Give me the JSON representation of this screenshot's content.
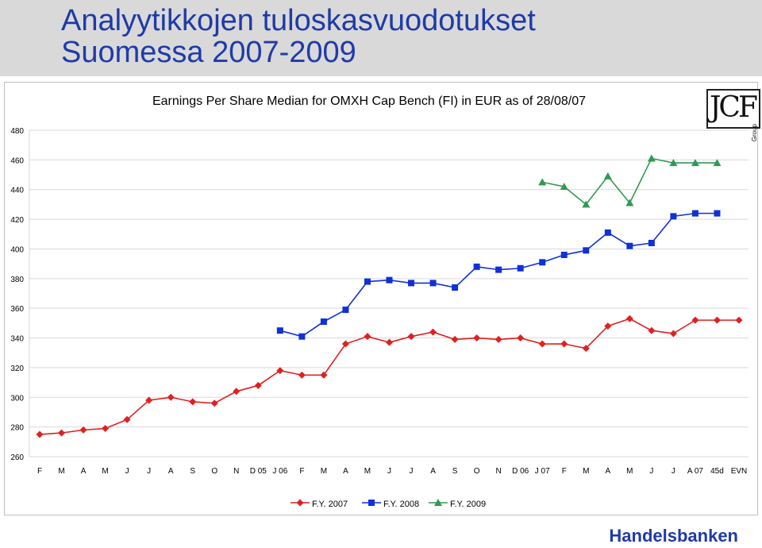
{
  "page": {
    "title_line1": "Analyytikkojen tuloskasvuodotukset",
    "title_line2": "Suomessa 2007-2009",
    "brand": "Handelsbanken",
    "logo_text": "JCF",
    "logo_sub": "Group"
  },
  "colors": {
    "title": "#1f3aa8",
    "fy2007": "#e02020",
    "fy2008": "#1030d8",
    "fy2009": "#2e9a52",
    "grid": "#d9d9d9"
  },
  "chart_data": {
    "type": "line",
    "title": "Earnings Per Share Median for OMXH Cap Bench (FI) in EUR as of 28/08/07",
    "ylim": [
      260,
      480
    ],
    "yticks": [
      260,
      280,
      300,
      320,
      340,
      360,
      380,
      400,
      420,
      440,
      460,
      480
    ],
    "grid": true,
    "legend_position": "bottom-center",
    "categories": [
      "F",
      "M",
      "A",
      "M",
      "J",
      "J",
      "A",
      "S",
      "O",
      "N",
      "D 05",
      "J 06",
      "F",
      "M",
      "A",
      "M",
      "J",
      "J",
      "A",
      "S",
      "O",
      "N",
      "D 06",
      "J 07",
      "F",
      "M",
      "A",
      "M",
      "J",
      "J",
      "A 07",
      "45d",
      "EVN"
    ],
    "series": [
      {
        "name": "F.Y. 2007",
        "color_key": "fy2007",
        "marker": "diamond",
        "values": [
          275,
          276,
          278,
          279,
          285,
          298,
          300,
          297,
          296,
          304,
          308,
          318,
          315,
          315,
          336,
          341,
          337,
          341,
          344,
          339,
          340,
          339,
          340,
          336,
          336,
          333,
          348,
          353,
          345,
          343,
          352,
          352,
          352
        ]
      },
      {
        "name": "F.Y. 2008",
        "color_key": "fy2008",
        "marker": "square",
        "values": [
          null,
          null,
          null,
          null,
          null,
          null,
          null,
          null,
          null,
          null,
          null,
          345,
          341,
          351,
          359,
          378,
          379,
          377,
          377,
          374,
          388,
          386,
          387,
          391,
          396,
          399,
          411,
          402,
          404,
          422,
          424,
          424,
          null
        ]
      },
      {
        "name": "F.Y. 2009",
        "color_key": "fy2009",
        "marker": "triangle",
        "values": [
          null,
          null,
          null,
          null,
          null,
          null,
          null,
          null,
          null,
          null,
          null,
          null,
          null,
          null,
          null,
          null,
          null,
          null,
          null,
          null,
          null,
          null,
          null,
          445,
          442,
          430,
          449,
          431,
          461,
          458,
          458,
          458,
          null
        ]
      }
    ]
  }
}
